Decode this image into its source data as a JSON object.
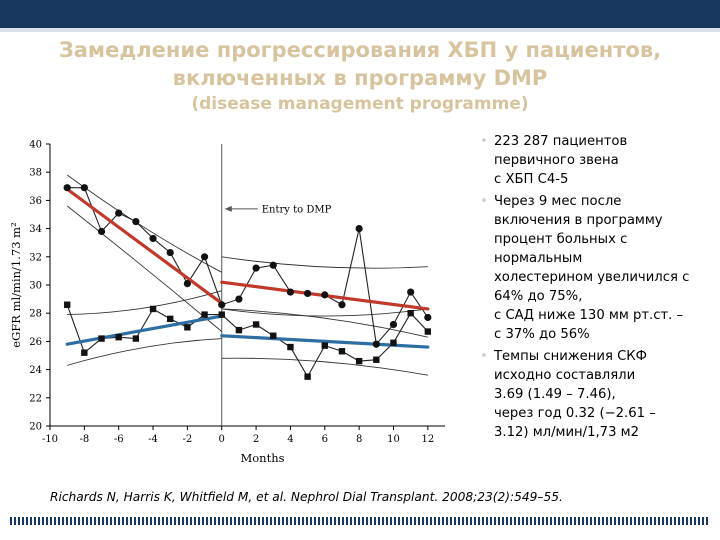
{
  "slide": {
    "title_line1": "Замедление прогрессирования ХБП у пациентов,",
    "title_line2": "включенных в программу DMP",
    "title_line3": "(disease management programme)",
    "citation": "Richards N, Harris K, Whitfield M, et al. Nephrol Dial Transplant. 2008;23(2):549–55.",
    "bullets": [
      {
        "lines": [
          "223 287 пациентов",
          "первичного звена",
          "с ХБП С4-5"
        ]
      },
      {
        "lines": [
          "Через 9 мес после",
          "включения в программу",
          "процент больных с",
          "нормальным",
          "холестерином увеличился с",
          "64% до 75%,",
          "с САД ниже 130 мм рт.ст. –",
          "с  37% до 56%"
        ]
      },
      {
        "lines": [
          "Темпы снижения СКФ",
          "исходно составляли",
          "3.69 (1.49 – 7.46),",
          "через год 0.32 (−2.61 –",
          "3.12) мл/мин/1,73 м2"
        ]
      }
    ],
    "colors": {
      "topbar": "#17375e",
      "title": "#d7c49e",
      "trend_red": "#c0392b",
      "trend_blue": "#2e6fa3"
    }
  },
  "chart_data": {
    "type": "line",
    "xlabel": "Months",
    "ylabel": "eGFR ml/min/1.73 m²",
    "xlim": [
      -10,
      13
    ],
    "ylim": [
      20,
      40
    ],
    "x_ticks": [
      -10,
      -8,
      -6,
      -4,
      -2,
      0,
      2,
      4,
      6,
      8,
      10,
      12
    ],
    "y_ticks": [
      20,
      22,
      24,
      26,
      28,
      30,
      32,
      34,
      36,
      38,
      40
    ],
    "annotation": "Entry to DMP",
    "annotation_x": 0,
    "series": [
      {
        "name": "eGFR (circles)",
        "marker": "circle",
        "x": [
          -9,
          -8,
          -7,
          -6,
          -5,
          -4,
          -3,
          -2,
          -1,
          0,
          1,
          2,
          3,
          4,
          5,
          6,
          7,
          8,
          9,
          10,
          11,
          12
        ],
        "y": [
          36.9,
          36.9,
          33.8,
          35.1,
          34.5,
          33.3,
          32.3,
          30.1,
          32.0,
          28.6,
          29.0,
          31.2,
          31.4,
          29.5,
          29.4,
          29.3,
          28.6,
          34.0,
          25.8,
          27.2,
          29.5,
          27.7
        ]
      },
      {
        "name": "eGFR (squares)",
        "marker": "square",
        "x": [
          -9,
          -8,
          -7,
          -6,
          -5,
          -4,
          -3,
          -2,
          -1,
          0,
          1,
          2,
          3,
          4,
          5,
          6,
          7,
          8,
          9,
          10,
          11,
          12
        ],
        "y": [
          28.6,
          25.2,
          26.2,
          26.3,
          26.2,
          28.3,
          27.6,
          27.0,
          27.9,
          27.9,
          26.8,
          27.2,
          26.4,
          25.6,
          23.5,
          25.7,
          25.3,
          24.6,
          24.7,
          25.9,
          28.0,
          26.7
        ]
      }
    ],
    "trends": [
      {
        "name": "pre-DMP trend (circles)",
        "color": "red",
        "x": [
          -9,
          0
        ],
        "y": [
          36.8,
          28.7
        ]
      },
      {
        "name": "post-DMP trend (circles)",
        "color": "red",
        "x": [
          0,
          12
        ],
        "y": [
          30.2,
          28.3
        ]
      },
      {
        "name": "pre-DMP trend (squares)",
        "color": "blue",
        "x": [
          -9,
          0
        ],
        "y": [
          25.8,
          27.8
        ]
      },
      {
        "name": "post-DMP trend (squares)",
        "color": "blue",
        "x": [
          0,
          12
        ],
        "y": [
          26.4,
          25.6
        ]
      }
    ],
    "confidence_bands": [
      {
        "name": "pre circles upper",
        "x": [
          -9,
          -4.5,
          0
        ],
        "y": [
          37.8,
          33.8,
          30.9
        ]
      },
      {
        "name": "pre circles lower",
        "x": [
          -9,
          -4.5,
          0
        ],
        "y": [
          35.6,
          31.3,
          26.7
        ]
      },
      {
        "name": "post circles upper",
        "x": [
          0,
          6,
          12
        ],
        "y": [
          32.0,
          30.9,
          31.3
        ]
      },
      {
        "name": "post circles lower",
        "x": [
          0,
          6,
          12
        ],
        "y": [
          28.3,
          28.0,
          26.3
        ]
      },
      {
        "name": "pre squares upper",
        "x": [
          -9,
          -4.5,
          0
        ],
        "y": [
          27.9,
          28.0,
          29.6
        ]
      },
      {
        "name": "pre squares lower",
        "x": [
          -9,
          -4.5,
          0
        ],
        "y": [
          24.3,
          25.9,
          26.2
        ]
      },
      {
        "name": "post squares upper",
        "x": [
          0,
          6,
          12
        ],
        "y": [
          28.3,
          27.3,
          28.3
        ]
      },
      {
        "name": "post squares lower",
        "x": [
          0,
          6,
          12
        ],
        "y": [
          24.8,
          24.9,
          23.6
        ]
      }
    ]
  }
}
